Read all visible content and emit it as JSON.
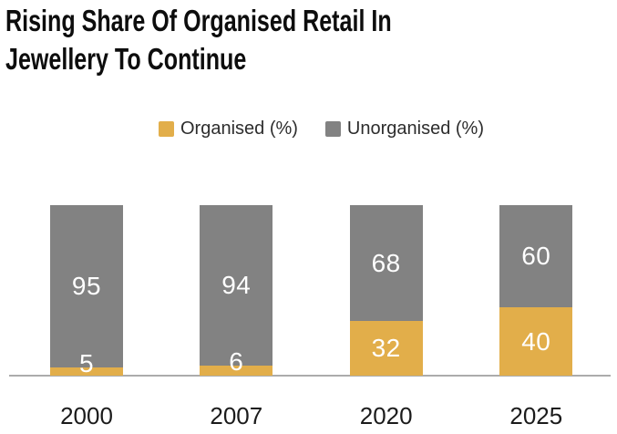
{
  "title": {
    "text": "Rising Share Of Organised Retail In Jewellery To Continue",
    "lines": [
      "Rising Share Of Organised Retail In",
      "Jewellery To Continue"
    ]
  },
  "legend": {
    "items": [
      {
        "label": "Organised (%)",
        "color": "#E2AE4A"
      },
      {
        "label": "Unorganised (%)",
        "color": "#828282"
      }
    ]
  },
  "chart_data": {
    "type": "bar",
    "stacked": true,
    "orientation": "vertical",
    "title": "Rising Share Of Organised Retail In Jewellery To Continue",
    "categories": [
      "2000",
      "2007",
      "2020",
      "2025"
    ],
    "series": [
      {
        "name": "Organised (%)",
        "color": "#E2AE4A",
        "values": [
          5,
          6,
          32,
          40
        ]
      },
      {
        "name": "Unorganised (%)",
        "color": "#828282",
        "values": [
          95,
          94,
          68,
          60
        ]
      }
    ],
    "xlabel": "",
    "ylabel": "",
    "ylim": [
      0,
      100
    ],
    "grid": false,
    "y_axis_visible": false,
    "legend_position": "top",
    "value_labels": "inside-white",
    "value_label_color": "#FFFFFF",
    "axis_line_color": "#ACACAC"
  }
}
